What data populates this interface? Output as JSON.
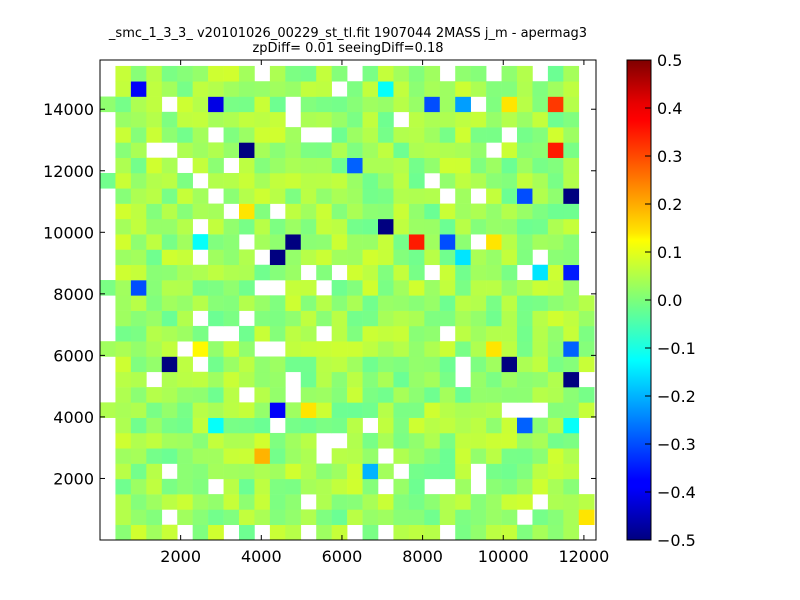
{
  "chart_data": {
    "type": "heatmap",
    "title_line1": "_smc_1_3_3_ v20101026_00229_st_tl.fit 1907044 2MASS j_m - apermag3",
    "title_line2": "zpDiff= 0.01 seeingDiff=0.18",
    "xlim": [
      0,
      12300
    ],
    "ylim": [
      0,
      15600
    ],
    "x_ticks": [
      "2000",
      "4000",
      "6000",
      "8000",
      "10000",
      "12000"
    ],
    "y_ticks": [
      "2000",
      "4000",
      "6000",
      "8000",
      "10000",
      "12000",
      "14000"
    ],
    "bin_width": 383,
    "bin_height": 497,
    "grid": false,
    "colormap": "jet",
    "colorbar": {
      "min": -0.5,
      "max": 0.5,
      "ticks": [
        "0.5",
        "0.4",
        "0.3",
        "0.2",
        "0.1",
        "0.0",
        "−0.1",
        "−0.2",
        "−0.3",
        "−0.4",
        "−0.5"
      ]
    },
    "base_value": 0.03,
    "outliers": [
      {
        "x": 960,
        "y": 14650,
        "v": -0.38
      },
      {
        "x": 2880,
        "y": 14150,
        "v": -0.4
      },
      {
        "x": 3650,
        "y": 12900,
        "v": -0.5
      },
      {
        "x": 6130,
        "y": 12400,
        "v": -0.28
      },
      {
        "x": 11120,
        "y": 14150,
        "v": 0.32
      },
      {
        "x": 11120,
        "y": 12900,
        "v": 0.35
      },
      {
        "x": 10350,
        "y": 11400,
        "v": -0.3
      },
      {
        "x": 11500,
        "y": 11400,
        "v": -0.5
      },
      {
        "x": 6900,
        "y": 10150,
        "v": -0.5
      },
      {
        "x": 4800,
        "y": 9650,
        "v": -0.5
      },
      {
        "x": 4410,
        "y": 9150,
        "v": -0.5
      },
      {
        "x": 7670,
        "y": 9650,
        "v": 0.35
      },
      {
        "x": 8440,
        "y": 9650,
        "v": -0.3
      },
      {
        "x": 9580,
        "y": 9650,
        "v": 0.15
      },
      {
        "x": 2490,
        "y": 9650,
        "v": -0.12
      },
      {
        "x": 11500,
        "y": 8650,
        "v": -0.35
      },
      {
        "x": 960,
        "y": 8150,
        "v": -0.3
      },
      {
        "x": 1720,
        "y": 5650,
        "v": -0.5
      },
      {
        "x": 9960,
        "y": 5650,
        "v": -0.5
      },
      {
        "x": 11500,
        "y": 5150,
        "v": -0.5
      },
      {
        "x": 11500,
        "y": 6150,
        "v": -0.28
      },
      {
        "x": 4410,
        "y": 4400,
        "v": -0.38
      },
      {
        "x": 10350,
        "y": 3900,
        "v": -0.28
      },
      {
        "x": 4030,
        "y": 2650,
        "v": 0.2
      },
      {
        "x": 6520,
        "y": 2150,
        "v": -0.2
      },
      {
        "x": 11880,
        "y": 900,
        "v": 0.15
      },
      {
        "x": 9960,
        "y": 14150,
        "v": 0.15
      },
      {
        "x": 3650,
        "y": 10650,
        "v": 0.15
      },
      {
        "x": 2490,
        "y": 6150,
        "v": 0.13
      },
      {
        "x": 9580,
        "y": 6150,
        "v": 0.15
      },
      {
        "x": 5180,
        "y": 4400,
        "v": 0.15
      },
      {
        "x": 2880,
        "y": 3900,
        "v": -0.12
      },
      {
        "x": 8830,
        "y": 9150,
        "v": -0.15
      },
      {
        "x": 6900,
        "y": 14650,
        "v": -0.12
      },
      {
        "x": 8060,
        "y": 14150,
        "v": -0.3
      },
      {
        "x": 9190,
        "y": 14150,
        "v": -0.22
      },
      {
        "x": 10740,
        "y": 8650,
        "v": -0.15
      },
      {
        "x": 11500,
        "y": 3900,
        "v": -0.12
      }
    ]
  }
}
